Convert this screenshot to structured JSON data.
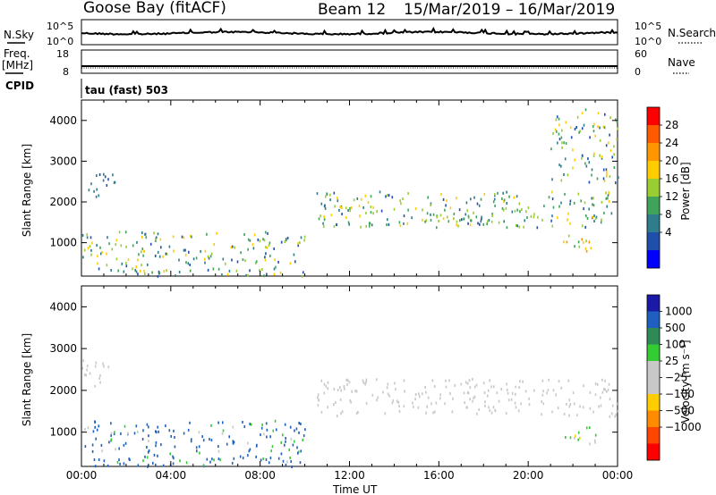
{
  "header": {
    "station": "Goose Bay (fitACF)",
    "beam": "Beam 12",
    "date_range": "15/Mar/2019 – 16/Mar/2019"
  },
  "noise_panel": {
    "left_label": "N.Sky",
    "right_label": "N.Search",
    "ticks_left": [
      "10^5",
      "10^0"
    ],
    "ticks_right": [
      "10^5",
      "10^0"
    ]
  },
  "freq_panel": {
    "left_label_1": "Freq.",
    "left_label_2": "[MHz]",
    "right_label": "Nave",
    "ticks_left": [
      "18",
      "8"
    ],
    "ticks_right": [
      "60",
      "0"
    ]
  },
  "cpid": {
    "label": "CPID",
    "value": "tau (fast) 503"
  },
  "x_axis": {
    "title": "Time UT",
    "ticks": [
      "00:00",
      "04:00",
      "08:00",
      "12:00",
      "16:00",
      "20:00",
      "00:00"
    ]
  },
  "power_panel": {
    "ylabel": "Slant Range [km]",
    "cbar_label": "Power [dB]",
    "cbar_ticks": [
      "28",
      "24",
      "20",
      "16",
      "12",
      "8",
      "4"
    ],
    "cbar_colors": [
      "#ff0000",
      "#ff5a00",
      "#ff9600",
      "#ffcc00",
      "#9acd32",
      "#3fa35a",
      "#2e7d8c",
      "#1e4faa",
      "#0000ff"
    ]
  },
  "velocity_panel": {
    "ylabel": "Slant Range [km]",
    "cbar_label": "Velocity [m s⁻¹]",
    "cbar_ticks": [
      "1000",
      "500",
      "100",
      "25",
      "−25",
      "−100",
      "−500",
      "−1000"
    ],
    "cbar_colors": [
      "#1a1aa6",
      "#1f5fbf",
      "#2e8b57",
      "#33cc33",
      "#c8c8c8",
      "#c8c8c8",
      "#ffcc00",
      "#ff8c00",
      "#ff4500",
      "#ff0000"
    ]
  },
  "chart_data": [
    {
      "type": "heatmap",
      "ylabel": "Slant Range [km]",
      "colorbar_label": "Power [dB]",
      "x_range": [
        "00:00",
        "00:00"
      ],
      "ylim": [
        180,
        4500
      ],
      "clim": [
        0,
        30
      ],
      "regions": [
        {
          "t0": 0.0,
          "t1": 1.5,
          "r0": 2100,
          "r1": 2750,
          "values": [
            6,
            10
          ]
        },
        {
          "t0": 10.5,
          "t1": 24.0,
          "r0": 1400,
          "r1": 2300,
          "values": [
            4,
            20
          ]
        },
        {
          "t0": 15.0,
          "t1": 20.0,
          "r0": 1500,
          "r1": 1900,
          "values": [
            8,
            16
          ]
        },
        {
          "t0": 21.5,
          "t1": 23.0,
          "r0": 700,
          "r1": 1200,
          "values": [
            12,
            24
          ]
        },
        {
          "t0": 0.0,
          "t1": 10.0,
          "r0": 200,
          "r1": 1300,
          "values": [
            4,
            20
          ]
        },
        {
          "t0": 21.0,
          "t1": 24.0,
          "r0": 2500,
          "r1": 4300,
          "values": [
            4,
            20
          ]
        }
      ]
    },
    {
      "type": "heatmap",
      "ylabel": "Slant Range [km]",
      "colorbar_label": "Velocity [m s⁻¹]",
      "x_range": [
        "00:00",
        "00:00"
      ],
      "ylim": [
        180,
        4500
      ],
      "clim": [
        -1000,
        1000
      ],
      "regions": [
        {
          "t0": 0.0,
          "t1": 1.5,
          "r0": 2100,
          "r1": 2750,
          "values": [
            -25,
            25
          ]
        },
        {
          "t0": 10.5,
          "t1": 24.0,
          "r0": 1400,
          "r1": 2300,
          "values": [
            -25,
            25
          ]
        },
        {
          "t0": 21.5,
          "t1": 23.0,
          "r0": 700,
          "r1": 1200,
          "values": [
            -100,
            100
          ]
        },
        {
          "t0": 0.0,
          "t1": 10.0,
          "r0": 200,
          "r1": 1300,
          "values": [
            -25,
            500
          ]
        }
      ]
    }
  ]
}
